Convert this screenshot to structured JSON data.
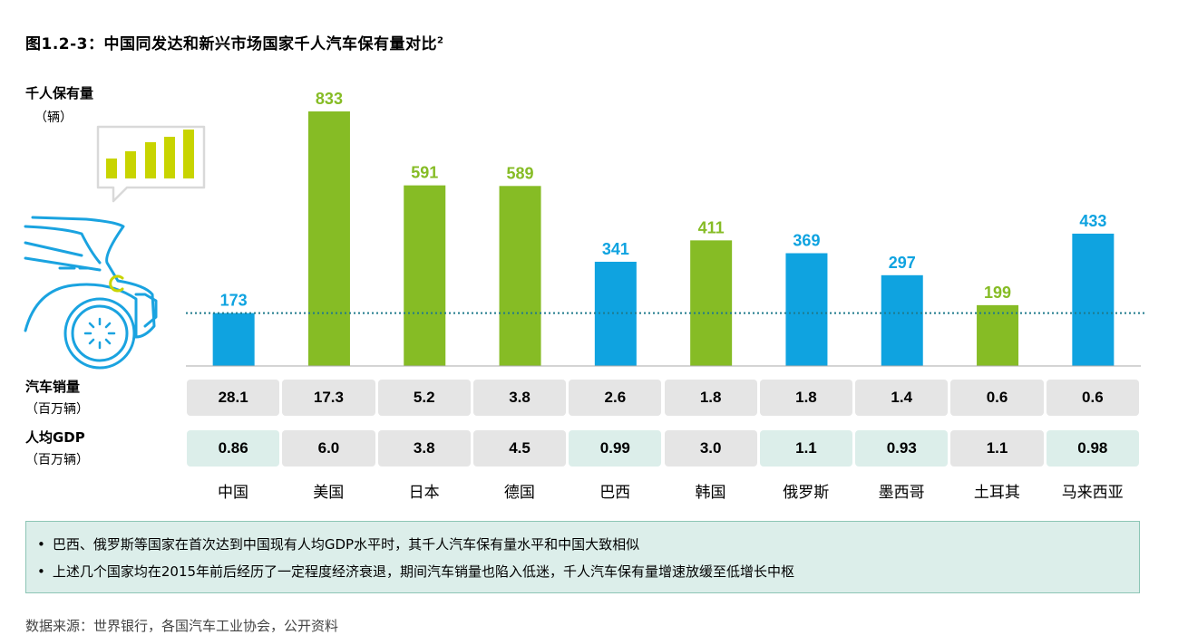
{
  "title": "图1.2-3：中国同发达和新兴市场国家千人汽车保有量对比",
  "title_sup": "2",
  "colors": {
    "blue": "#0fa3e0",
    "green": "#86bc25",
    "icon_blue": "#1aa3e0",
    "icon_lime": "#c8d400",
    "dotted": "#1f7a8c"
  },
  "chart_data": {
    "type": "bar",
    "ylabel": "千人保有量",
    "yunit": "（辆）",
    "categories": [
      "中国",
      "美国",
      "日本",
      "德国",
      "巴西",
      "韩国",
      "俄罗斯",
      "墨西哥",
      "土耳其",
      "马来西亚"
    ],
    "values": [
      173,
      833,
      591,
      589,
      341,
      411,
      369,
      297,
      199,
      433
    ],
    "bar_colors": [
      "blue",
      "green",
      "green",
      "green",
      "blue",
      "green",
      "blue",
      "blue",
      "green",
      "blue"
    ],
    "reference_line": 173,
    "ylim": [
      0,
      833
    ]
  },
  "rows": [
    {
      "label": "汽车销量",
      "unit": "（百万辆）",
      "values": [
        "28.1",
        "17.3",
        "5.2",
        "3.8",
        "2.6",
        "1.8",
        "1.8",
        "1.4",
        "0.6",
        "0.6"
      ],
      "shades": [
        "gray",
        "gray",
        "gray",
        "gray",
        "gray",
        "gray",
        "gray",
        "gray",
        "gray",
        "gray"
      ]
    },
    {
      "label": "人均GDP",
      "unit": "（百万辆）",
      "values": [
        "0.86",
        "6.0",
        "3.8",
        "4.5",
        "0.99",
        "3.0",
        "1.1",
        "0.93",
        "1.1",
        "0.98"
      ],
      "shades": [
        "teal",
        "gray",
        "gray",
        "gray",
        "teal",
        "gray",
        "teal",
        "teal",
        "gray",
        "teal"
      ]
    }
  ],
  "notes": [
    "巴西、俄罗斯等国家在首次达到中国现有人均GDP水平时，其千人汽车保有量水平和中国大致相似",
    "上述几个国家均在2015年前后经历了一定程度经济衰退，期间汽车销量也陷入低迷，千人汽车保有量增速放缓至低增长中枢"
  ],
  "source": "数据来源：世界银行，各国汽车工业协会，公开资料"
}
